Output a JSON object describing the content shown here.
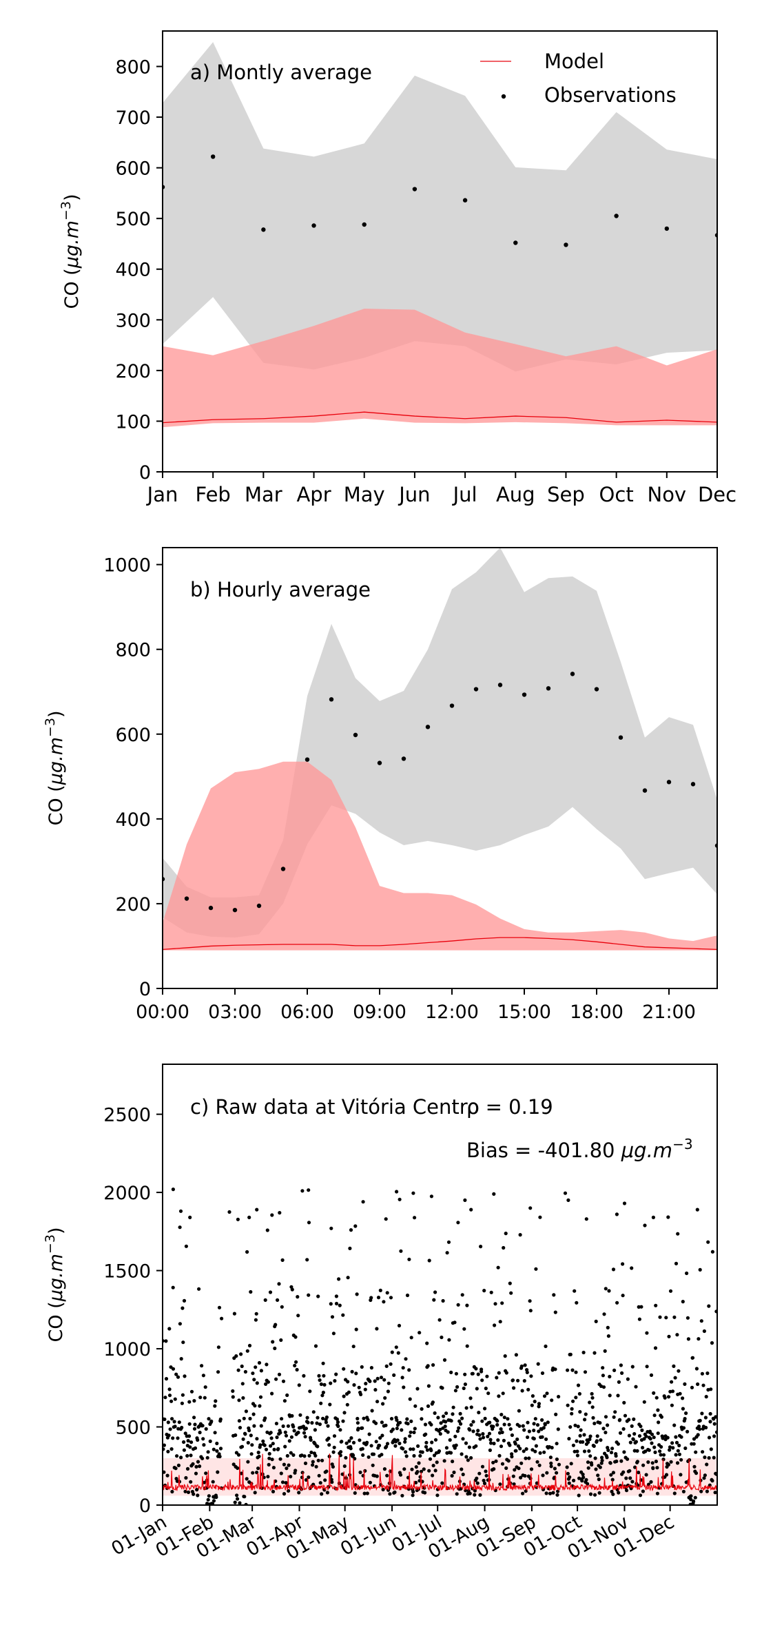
{
  "chart_data": [
    {
      "type": "line",
      "panel_label": "a) Montly average",
      "ylabel": "CO (μg.m⁻³)",
      "ylabel_main": "CO (",
      "ylabel_unit": "μg.m",
      "ylabel_sup": "−3",
      "ylabel_close": ")",
      "ylim": [
        0,
        870
      ],
      "yticks": [
        0,
        100,
        200,
        300,
        400,
        500,
        600,
        700,
        800
      ],
      "categories": [
        "Jan",
        "Feb",
        "Mar",
        "Apr",
        "May",
        "Jun",
        "Jul",
        "Aug",
        "Sep",
        "Oct",
        "Nov",
        "Dec"
      ],
      "legend": {
        "placement": "top-right",
        "entries": [
          "Model",
          "Observations"
        ]
      },
      "colors": {
        "model": "#e8000b",
        "model_band": "#ff9999",
        "obs_band": "#bfbfbf",
        "obs": "#000000"
      },
      "series": [
        {
          "name": "Model",
          "kind": "line",
          "values": [
            97,
            103,
            105,
            110,
            118,
            110,
            105,
            110,
            107,
            98,
            102,
            98
          ]
        },
        {
          "name": "Observations",
          "kind": "points",
          "values": [
            562,
            622,
            478,
            486,
            488,
            558,
            536,
            452,
            448,
            505,
            480,
            467
          ]
        }
      ],
      "bands": [
        {
          "of": "Observations",
          "lower": [
            252,
            345,
            215,
            202,
            225,
            258,
            248,
            198,
            222,
            212,
            235,
            240
          ],
          "upper": [
            728,
            848,
            638,
            622,
            648,
            782,
            742,
            601,
            595,
            710,
            636,
            617
          ]
        },
        {
          "of": "Model",
          "lower": [
            88,
            96,
            97,
            97,
            105,
            97,
            96,
            98,
            96,
            92,
            92,
            92
          ],
          "upper": [
            248,
            230,
            258,
            288,
            322,
            320,
            275,
            252,
            228,
            248,
            210,
            242
          ]
        }
      ]
    },
    {
      "type": "line",
      "panel_label": "b) Hourly average",
      "ylabel": "CO (μg.m⁻³)",
      "ylabel_main": "CO (",
      "ylabel_unit": "μg.m",
      "ylabel_sup": "−3",
      "ylabel_close": ")",
      "ylim": [
        0,
        1040
      ],
      "yticks": [
        0,
        200,
        400,
        600,
        800,
        1000
      ],
      "x": [
        0,
        1,
        2,
        3,
        4,
        5,
        6,
        7,
        8,
        9,
        10,
        11,
        12,
        13,
        14,
        15,
        16,
        17,
        18,
        19,
        20,
        21,
        22,
        23
      ],
      "xticks": [
        0,
        3,
        6,
        9,
        12,
        15,
        18,
        21
      ],
      "xtick_labels": [
        "00:00",
        "03:00",
        "06:00",
        "09:00",
        "12:00",
        "15:00",
        "18:00",
        "21:00"
      ],
      "xlim": [
        0,
        23
      ],
      "series": [
        {
          "name": "Model",
          "kind": "line",
          "values": [
            92,
            96,
            100,
            102,
            103,
            104,
            104,
            104,
            101,
            101,
            104,
            108,
            112,
            117,
            120,
            120,
            118,
            115,
            110,
            104,
            98,
            96,
            94,
            92
          ]
        },
        {
          "name": "Observations",
          "kind": "points",
          "values": [
            258,
            212,
            190,
            185,
            195,
            282,
            540,
            682,
            598,
            532,
            542,
            617,
            667,
            706,
            716,
            693,
            708,
            742,
            706,
            592,
            467,
            487,
            482,
            337
          ]
        }
      ],
      "bands": [
        {
          "of": "Observations",
          "lower": [
            168,
            132,
            122,
            120,
            128,
            200,
            340,
            432,
            412,
            368,
            338,
            348,
            338,
            325,
            338,
            362,
            382,
            428,
            376,
            330,
            258,
            272,
            285,
            222
          ],
          "upper": [
            308,
            240,
            215,
            215,
            220,
            350,
            690,
            860,
            732,
            678,
            702,
            800,
            942,
            982,
            1040,
            935,
            968,
            972,
            938,
            770,
            592,
            640,
            622,
            445
          ]
        },
        {
          "of": "Model",
          "lower": [
            90,
            90,
            90,
            90,
            90,
            90,
            90,
            90,
            90,
            90,
            90,
            90,
            90,
            90,
            90,
            90,
            90,
            90,
            90,
            90,
            90,
            90,
            90,
            90
          ],
          "upper": [
            155,
            340,
            472,
            510,
            518,
            535,
            535,
            492,
            380,
            242,
            225,
            225,
            220,
            198,
            165,
            140,
            132,
            132,
            135,
            138,
            132,
            118,
            112,
            125
          ]
        }
      ]
    },
    {
      "type": "scatter",
      "panel_label": "c) Raw data at Vitória Centro",
      "annotations": {
        "rho_text": "ρ = 0.19",
        "bias_text": "Bias = -401.80 μg.m⁻³",
        "bias_main": "Bias = -401.80 ",
        "bias_unit": "μg.m",
        "bias_sup": "−3"
      },
      "ylabel": "CO (μg.m⁻³)",
      "ylabel_main": "CO (",
      "ylabel_unit": "μg.m",
      "ylabel_sup": "−3",
      "ylabel_close": ")",
      "ylim": [
        0,
        2820
      ],
      "yticks": [
        0,
        500,
        1000,
        1500,
        2000,
        2500
      ],
      "xlim": [
        1,
        366
      ],
      "xticks": [
        1,
        32,
        60,
        91,
        121,
        152,
        182,
        213,
        244,
        274,
        305,
        335
      ],
      "xtick_labels": [
        "01-Jan",
        "01-Feb",
        "01-Mar",
        "01-Apr",
        "01-May",
        "01-Jun",
        "01-Jul",
        "01-Aug",
        "01-Sep",
        "01-Oct",
        "01-Nov",
        "01-Dec"
      ],
      "observation_gaps": [
        [
          40,
          47
        ],
        [
          262,
          267
        ],
        [
          265,
          266
        ]
      ],
      "series": [
        {
          "name": "Observations",
          "kind": "points",
          "summary": "hourly CO observations, mostly 50–1000 with peaks near 2000"
        },
        {
          "name": "Model",
          "kind": "line",
          "summary": "hourly model CO, mostly 90–180 with spikes near 300"
        }
      ],
      "highlight_points": [
        [
          8,
          2020
        ],
        [
          13,
          1880
        ],
        [
          19,
          1840
        ],
        [
          45,
          1875
        ],
        [
          58,
          1840
        ],
        [
          63,
          1890
        ],
        [
          73,
          1855
        ],
        [
          78,
          1870
        ],
        [
          93,
          2010
        ],
        [
          97,
          2015
        ],
        [
          112,
          1770
        ],
        [
          125,
          1760
        ],
        [
          133,
          1940
        ],
        [
          148,
          1830
        ],
        [
          155,
          2005
        ],
        [
          157,
          1955
        ],
        [
          166,
          1995
        ],
        [
          178,
          1975
        ],
        [
          200,
          1950
        ],
        [
          204,
          1890
        ],
        [
          219,
          1990
        ],
        [
          243,
          1900
        ],
        [
          266,
          1995
        ],
        [
          268,
          1950
        ],
        [
          280,
          1830
        ],
        [
          300,
          1860
        ],
        [
          305,
          1930
        ],
        [
          324,
          1840
        ],
        [
          340,
          1735
        ],
        [
          353,
          1890
        ]
      ]
    }
  ]
}
